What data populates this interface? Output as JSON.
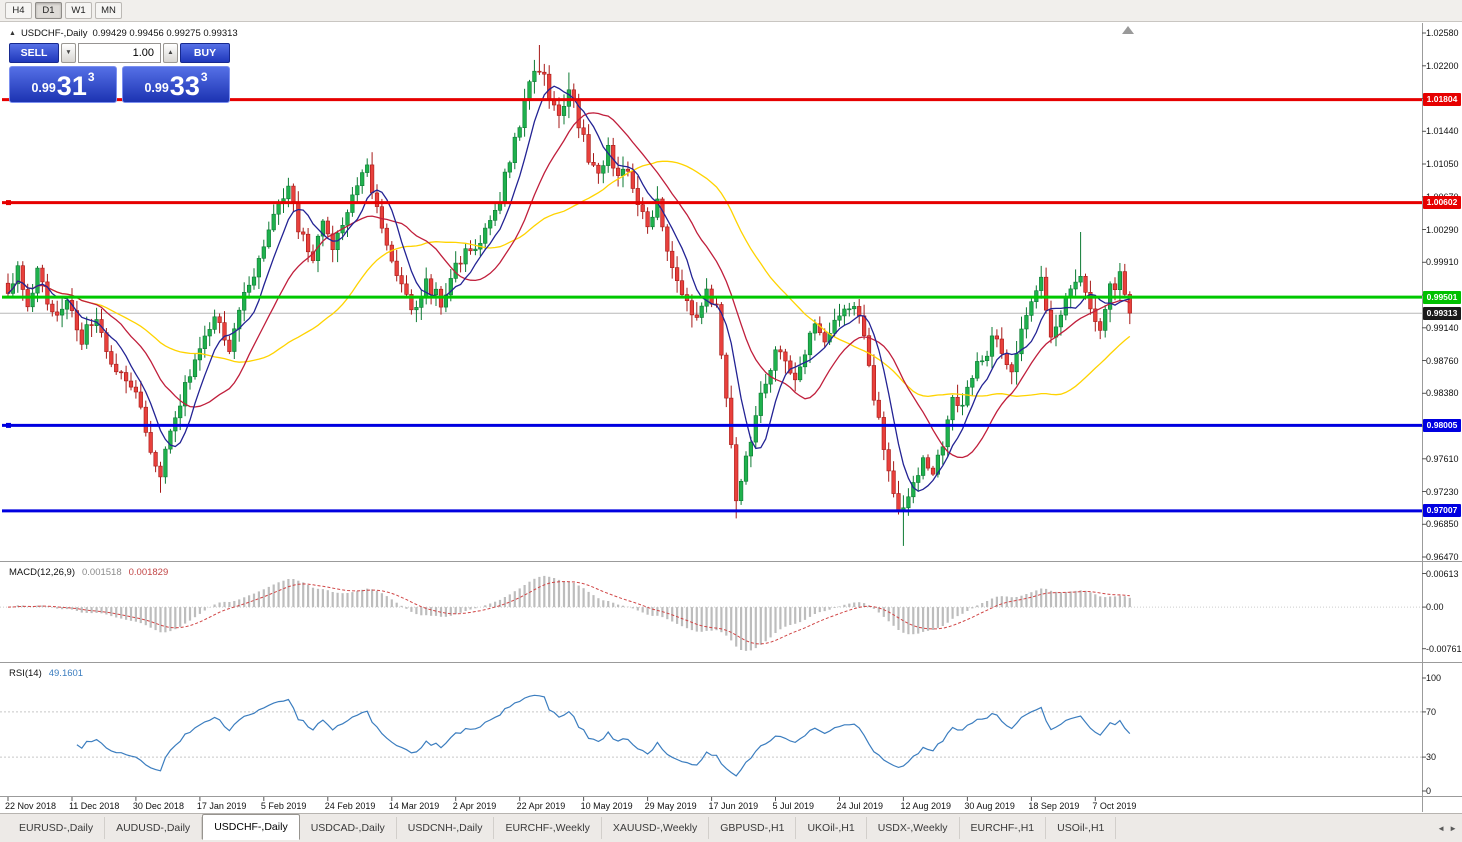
{
  "toolbar": {
    "timeframes": [
      {
        "label": "H4",
        "active": false
      },
      {
        "label": "D1",
        "active": true
      },
      {
        "label": "W1",
        "active": false
      },
      {
        "label": "MN",
        "active": false
      }
    ]
  },
  "chart_header": {
    "collapse_icon": "▲",
    "title": "USDCHF-,Daily",
    "ohlc": "0.99429 0.99456 0.99275 0.99313"
  },
  "trade_panel": {
    "sell_label": "SELL",
    "buy_label": "BUY",
    "volume": "1.00",
    "down_icon": "▼",
    "up_icon": "▲",
    "sell_price": {
      "prefix": "0.99",
      "pips": "31",
      "pipette": "3"
    },
    "buy_price": {
      "prefix": "0.99",
      "pips": "33",
      "pipette": "3"
    }
  },
  "price_axis": {
    "badges": [
      {
        "value": "1.01804",
        "price": 1.01804,
        "color": "#e60000"
      },
      {
        "value": "1.00602",
        "price": 1.00602,
        "color": "#e60000"
      },
      {
        "value": "0.99501",
        "price": 0.99501,
        "color": "#00c000"
      },
      {
        "value": "0.99313",
        "price": 0.99313,
        "color": "#1a1a1a"
      },
      {
        "value": "0.98005",
        "price": 0.98005,
        "color": "#0000e0"
      },
      {
        "value": "0.97007",
        "price": 0.97007,
        "color": "#0000e0"
      }
    ]
  },
  "macd_panel": {
    "label": "MACD(12,26,9)",
    "value_main": "0.001518",
    "value_signal": "0.001829",
    "axis": [
      {
        "label": "0.00613",
        "value": 0.00613
      },
      {
        "label": "0.00",
        "value": 0
      },
      {
        "label": "-0.00761",
        "value": -0.00761
      }
    ]
  },
  "rsi_panel": {
    "label": "RSI(14)",
    "value": "49.1601",
    "axis": [
      {
        "label": "100",
        "value": 100
      },
      {
        "label": "70",
        "value": 70
      },
      {
        "label": "30",
        "value": 30
      },
      {
        "label": "0",
        "value": 0
      }
    ]
  },
  "tab_scroll": {
    "left": "◄",
    "right": "►"
  },
  "tabs": [
    {
      "label": "EURUSD-,Daily",
      "active": false
    },
    {
      "label": "AUDUSD-,Daily",
      "active": false
    },
    {
      "label": "USDCHF-,Daily",
      "active": true
    },
    {
      "label": "USDCAD-,Daily",
      "active": false
    },
    {
      "label": "USDCNH-,Daily",
      "active": false
    },
    {
      "label": "EURCHF-,Weekly",
      "active": false
    },
    {
      "label": "XAUUSD-,Weekly",
      "active": false
    },
    {
      "label": "GBPUSD-,H1",
      "active": false
    },
    {
      "label": "UKOil-,H1",
      "active": false
    },
    {
      "label": "USDX-,Weekly",
      "active": false
    },
    {
      "label": "EURCHF-,H1",
      "active": false
    },
    {
      "label": "USOil-,H1",
      "active": false
    }
  ],
  "chart_data": {
    "type": "candlestick",
    "symbol": "USDCHF",
    "period": "Daily",
    "current_price": 0.99313,
    "price_axis_range": [
      0.9647,
      1.0258
    ],
    "price_axis_ticks": [
      "1.02580",
      "1.02200",
      "1.01820",
      "1.01440",
      "1.01050",
      "1.00670",
      "1.00290",
      "0.99910",
      "0.99530",
      "0.99140",
      "0.98760",
      "0.98380",
      "0.98000",
      "0.97610",
      "0.97230",
      "0.96850",
      "0.96470"
    ],
    "date_ticks": [
      "22 Nov 2018",
      "11 Dec 2018",
      "30 Dec 2018",
      "17 Jan 2019",
      "5 Feb 2019",
      "24 Feb 2019",
      "14 Mar 2019",
      "2 Apr 2019",
      "22 Apr 2019",
      "10 May 2019",
      "29 May 2019",
      "17 Jun 2019",
      "5 Jul 2019",
      "24 Jul 2019",
      "12 Aug 2019",
      "30 Aug 2019",
      "18 Sep 2019",
      "7 Oct 2019"
    ],
    "bars_per_tick": 13,
    "bar_count": 229,
    "seed": 20,
    "horizontal_levels": [
      {
        "price": 1.01804,
        "color": "#e60000",
        "marker": false
      },
      {
        "price": 1.00602,
        "color": "#e60000",
        "marker": true
      },
      {
        "price": 0.99501,
        "color": "#00c800",
        "marker": false
      },
      {
        "price": 0.98005,
        "color": "#0000e0",
        "marker": true
      },
      {
        "price": 0.97007,
        "color": "#0000e0",
        "marker": false
      }
    ],
    "ma_periods": {
      "fast": 7,
      "mid": 18,
      "slow": 40
    },
    "macd_params": "12,26,9",
    "rsi_period": 14,
    "colors": {
      "up": "#1fb14d",
      "up_edge": "#0c7a33",
      "down": "#e8403c",
      "down_edge": "#a61917",
      "ma_fast": "#232394",
      "ma_mid": "#c01f3c",
      "ma_slow": "#ffd300",
      "macd_hist": "#bdbdbd",
      "macd_signal": "#d04545",
      "rsi": "#3b7dbf",
      "current_price_line": "#b8b8b8"
    },
    "waypoints_format": "[bar_index, close_price] estimated from rendered candles",
    "waypoints": [
      [
        0,
        0.995
      ],
      [
        2,
        0.9985
      ],
      [
        4,
        0.994
      ],
      [
        6,
        0.998
      ],
      [
        9,
        0.9925
      ],
      [
        12,
        0.995
      ],
      [
        15,
        0.99
      ],
      [
        18,
        0.993
      ],
      [
        21,
        0.9875
      ],
      [
        24,
        0.9845
      ],
      [
        27,
        0.9825
      ],
      [
        29,
        0.977
      ],
      [
        31,
        0.9745
      ],
      [
        33,
        0.98
      ],
      [
        36,
        0.9845
      ],
      [
        39,
        0.9885
      ],
      [
        42,
        0.9925
      ],
      [
        45,
        0.9895
      ],
      [
        48,
        0.9955
      ],
      [
        51,
        0.9995
      ],
      [
        54,
        1.004
      ],
      [
        57,
        1.0078
      ],
      [
        59,
        1.003
      ],
      [
        62,
        1.0
      ],
      [
        64,
        1.0035
      ],
      [
        66,
        1.0005
      ],
      [
        68,
        1.003
      ],
      [
        70,
        1.0065
      ],
      [
        73,
        1.01
      ],
      [
        75,
        1.0055
      ],
      [
        77,
        1.0015
      ],
      [
        80,
        0.996
      ],
      [
        82,
        0.993
      ],
      [
        85,
        0.9965
      ],
      [
        88,
        0.9945
      ],
      [
        91,
        0.9985
      ],
      [
        94,
        1.0005
      ],
      [
        97,
        1.0025
      ],
      [
        100,
        1.0065
      ],
      [
        102,
        1.011
      ],
      [
        104,
        1.0155
      ],
      [
        106,
        1.0205
      ],
      [
        108,
        1.022
      ],
      [
        110,
        1.0185
      ],
      [
        112,
        1.0165
      ],
      [
        114,
        1.0195
      ],
      [
        116,
        1.0155
      ],
      [
        118,
        1.0115
      ],
      [
        120,
        1.0095
      ],
      [
        122,
        1.0125
      ],
      [
        124,
        1.0085
      ],
      [
        126,
        1.01
      ],
      [
        128,
        1.006
      ],
      [
        130,
        1.004
      ],
      [
        132,
        1.0058
      ],
      [
        134,
        1.001
      ],
      [
        136,
        0.9968
      ],
      [
        138,
        0.9938
      ],
      [
        140,
        0.992
      ],
      [
        142,
        0.9958
      ],
      [
        144,
        0.9935
      ],
      [
        146,
        0.984
      ],
      [
        148,
        0.9715
      ],
      [
        150,
        0.9758
      ],
      [
        152,
        0.9818
      ],
      [
        154,
        0.985
      ],
      [
        156,
        0.9893
      ],
      [
        158,
        0.9868
      ],
      [
        160,
        0.9848
      ],
      [
        162,
        0.9888
      ],
      [
        164,
        0.9918
      ],
      [
        166,
        0.9898
      ],
      [
        168,
        0.9918
      ],
      [
        170,
        0.9928
      ],
      [
        172,
        0.9944
      ],
      [
        174,
        0.9898
      ],
      [
        176,
        0.9838
      ],
      [
        178,
        0.9778
      ],
      [
        180,
        0.9718
      ],
      [
        182,
        0.9698
      ],
      [
        184,
        0.9728
      ],
      [
        186,
        0.9758
      ],
      [
        188,
        0.9742
      ],
      [
        190,
        0.9778
      ],
      [
        192,
        0.9828
      ],
      [
        194,
        0.9818
      ],
      [
        196,
        0.9858
      ],
      [
        198,
        0.9878
      ],
      [
        200,
        0.9898
      ],
      [
        202,
        0.9888
      ],
      [
        204,
        0.9868
      ],
      [
        206,
        0.9908
      ],
      [
        208,
        0.9938
      ],
      [
        210,
        0.9968
      ],
      [
        212,
        0.9898
      ],
      [
        214,
        0.9928
      ],
      [
        216,
        0.9958
      ],
      [
        218,
        0.9982
      ],
      [
        220,
        0.9938
      ],
      [
        222,
        0.9918
      ],
      [
        224,
        0.9958
      ],
      [
        226,
        0.9972
      ],
      [
        228,
        0.9931
      ]
    ],
    "spikes": [
      {
        "bar": 31,
        "low": 0.9722
      },
      {
        "bar": 108,
        "high": 1.0244
      },
      {
        "bar": 114,
        "high": 1.0212
      },
      {
        "bar": 148,
        "low": 0.9692
      },
      {
        "bar": 182,
        "low": 0.966
      },
      {
        "bar": 218,
        "high": 1.0026
      }
    ]
  }
}
